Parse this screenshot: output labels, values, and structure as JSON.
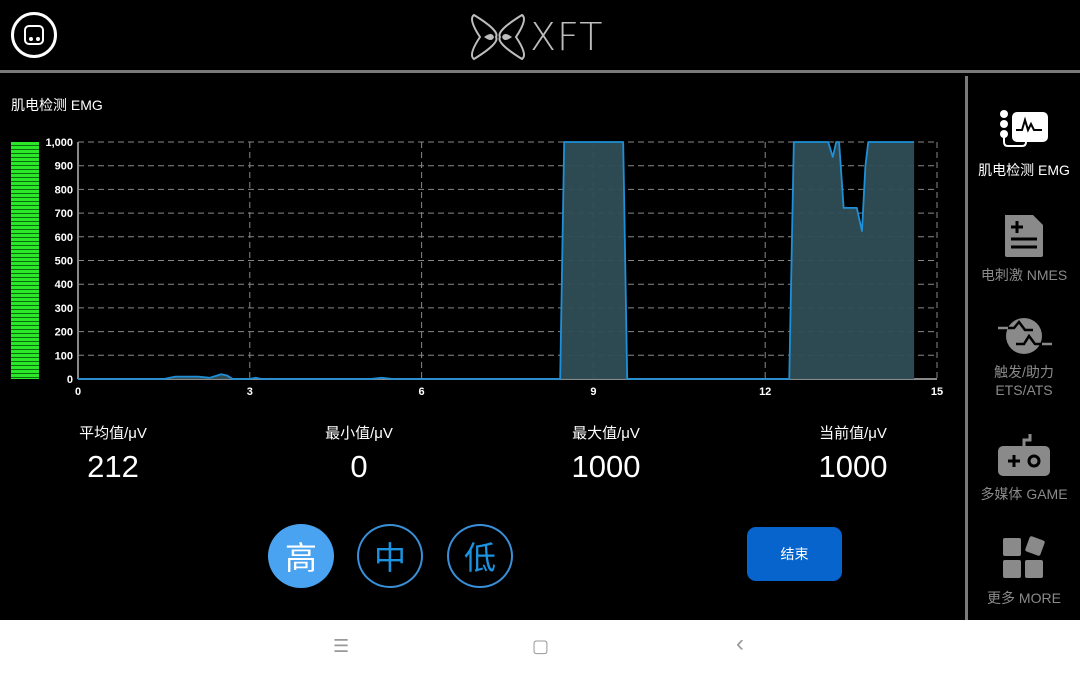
{
  "header": {
    "logo_text": "XFT"
  },
  "panel_title": "肌电检测 EMG",
  "meter": {
    "level": 1000,
    "max": 1000,
    "color": "#2be82b"
  },
  "chart_data": {
    "type": "area",
    "xlim": [
      0,
      15
    ],
    "ylim": [
      0,
      1000
    ],
    "xticks": [
      "0",
      "3",
      "6",
      "9",
      "12",
      "15"
    ],
    "yticks": [
      "0",
      "100",
      "200",
      "300",
      "400",
      "500",
      "600",
      "700",
      "800",
      "900",
      "1,000"
    ],
    "grid": true,
    "line_color": "#1e90d8",
    "fill_color": "#2f4d55",
    "x": [
      0,
      1.5,
      1.7,
      2.1,
      2.3,
      2.5,
      2.6,
      2.7,
      3.0,
      3.1,
      3.2,
      5.1,
      5.3,
      5.5,
      8.42,
      8.49,
      9.52,
      9.59,
      12.42,
      12.5,
      13.1,
      13.18,
      13.24,
      13.29,
      13.37,
      13.6,
      13.69,
      13.75,
      13.8,
      14.6
    ],
    "y": [
      0,
      0,
      10,
      10,
      5,
      20,
      15,
      0,
      0,
      5,
      0,
      0,
      5,
      0,
      0,
      1000,
      1000,
      0,
      0,
      1000,
      1000,
      937,
      1000,
      1000,
      722,
      722,
      624,
      900,
      1000,
      1000
    ]
  },
  "stats": [
    {
      "label": "平均值/μV",
      "value": "212"
    },
    {
      "label": "最小值/μV",
      "value": "0"
    },
    {
      "label": "最大值/μV",
      "value": "1000"
    },
    {
      "label": "当前值/μV",
      "value": "1000"
    }
  ],
  "levels": [
    {
      "label": "高",
      "selected": true
    },
    {
      "label": "中",
      "selected": false
    },
    {
      "label": "低",
      "selected": false
    }
  ],
  "end_button": "结束",
  "sidebar": [
    {
      "label": "肌电检测 EMG",
      "icon": "emg-icon",
      "active": true
    },
    {
      "label": "电刺激 NMES",
      "icon": "document-plus-minus-icon",
      "active": false
    },
    {
      "label": "触发/助力 ETS/ATS",
      "icon": "waveform-circle-icon",
      "active": false
    },
    {
      "label": "多媒体 GAME",
      "icon": "gamepad-icon",
      "active": false
    },
    {
      "label": "更多 MORE",
      "icon": "grid-icon",
      "active": false
    }
  ],
  "navbar": {
    "menu": "☰",
    "home": "▢",
    "back": "‹"
  }
}
